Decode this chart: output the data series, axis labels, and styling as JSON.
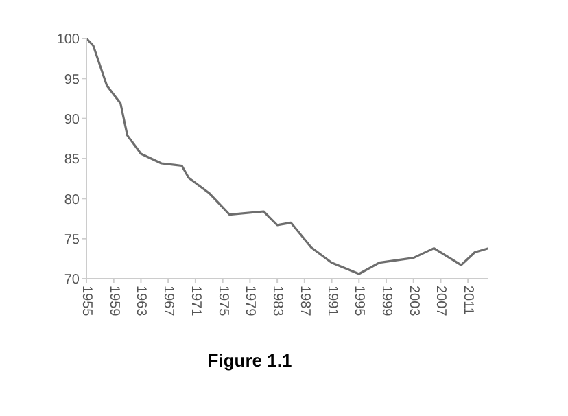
{
  "chart_data": {
    "type": "line",
    "annotations": [
      "Figure 1.1"
    ],
    "x": [
      1955,
      1956,
      1958,
      1960,
      1961,
      1963,
      1966,
      1969,
      1970,
      1973,
      1976,
      1981,
      1983,
      1985,
      1988,
      1991,
      1995,
      1998,
      2003,
      2006,
      2010,
      2012,
      2014
    ],
    "series": [
      {
        "color": "#6e6e6e",
        "values": [
          100,
          99.1,
          94.1,
          91.9,
          87.9,
          85.6,
          84.4,
          84.1,
          82.6,
          80.7,
          78.0,
          78.4,
          76.7,
          77.0,
          73.9,
          72.0,
          70.6,
          72.0,
          72.6,
          73.8,
          71.7,
          73.3,
          73.8
        ]
      }
    ],
    "xlim": [
      1955,
      2014
    ],
    "xticks": [
      1955,
      1959,
      1963,
      1967,
      1971,
      1975,
      1979,
      1983,
      1987,
      1991,
      1995,
      1999,
      2003,
      2007,
      2011
    ],
    "ylim": [
      70,
      100
    ],
    "yticks": [
      70,
      75,
      80,
      85,
      90,
      95,
      100
    ],
    "grid": false,
    "legend": false,
    "marker": "none",
    "line_style": "solid"
  }
}
